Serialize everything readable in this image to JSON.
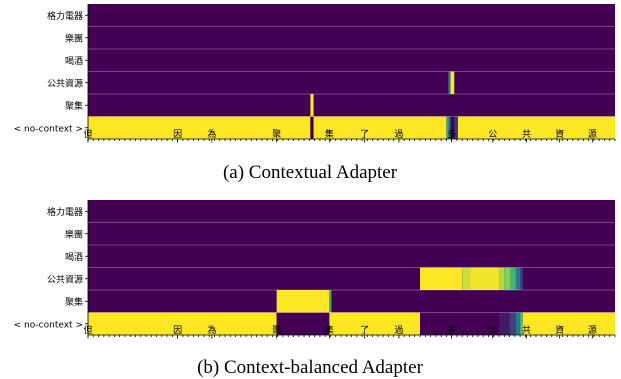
{
  "colors": {
    "background": "#440154",
    "active": "#fde725",
    "row_separator": "#ffffff"
  },
  "chart_data": [
    {
      "type": "heatmap",
      "caption": "(a) Contextual Adapter",
      "y_categories": [
        "格力電器",
        "樂團",
        "喝酒",
        "公共資源",
        "聚集",
        "< no-context >"
      ],
      "x_tick_labels": [
        "但",
        "因",
        "為",
        "聚",
        "集",
        "了",
        "過",
        "多",
        "公",
        "共",
        "資",
        "源"
      ],
      "x_range": [
        0,
        100
      ],
      "segments": [
        {
          "row": 5,
          "start": 0,
          "end": 42.2,
          "value": 1.0
        },
        {
          "row": 5,
          "start": 42.2,
          "end": 42.8,
          "value": 0.0
        },
        {
          "row": 5,
          "start": 42.8,
          "end": 68.0,
          "value": 1.0
        },
        {
          "row": 5,
          "start": 68.0,
          "end": 68.4,
          "value": 0.6
        },
        {
          "row": 5,
          "start": 68.4,
          "end": 68.8,
          "value": 0.4
        },
        {
          "row": 5,
          "start": 68.8,
          "end": 69.5,
          "value": 0.0
        },
        {
          "row": 5,
          "start": 69.5,
          "end": 70.2,
          "value": 0.15
        },
        {
          "row": 5,
          "start": 70.2,
          "end": 100,
          "value": 1.0
        },
        {
          "row": 4,
          "start": 42.2,
          "end": 42.8,
          "value": 1.0
        },
        {
          "row": 3,
          "start": 68.4,
          "end": 68.8,
          "value": 0.45
        },
        {
          "row": 3,
          "start": 68.8,
          "end": 69.5,
          "value": 1.0
        }
      ]
    },
    {
      "type": "heatmap",
      "caption": "(b) Context-balanced Adapter",
      "y_categories": [
        "格力電器",
        "樂團",
        "喝酒",
        "公共資源",
        "聚集",
        "< no-context >"
      ],
      "x_tick_labels": [
        "但",
        "因",
        "為",
        "聚",
        "集",
        "了",
        "過",
        "多",
        "公",
        "共",
        "資",
        "源"
      ],
      "x_range": [
        0,
        100
      ],
      "segments": [
        {
          "row": 5,
          "start": 0,
          "end": 35.8,
          "value": 1.0
        },
        {
          "row": 5,
          "start": 35.8,
          "end": 45.8,
          "value": 0.0
        },
        {
          "row": 5,
          "start": 45.8,
          "end": 63.0,
          "value": 1.0
        },
        {
          "row": 5,
          "start": 63.0,
          "end": 78.0,
          "value": 0.0
        },
        {
          "row": 5,
          "start": 78.0,
          "end": 80.0,
          "value": 0.08
        },
        {
          "row": 5,
          "start": 80.0,
          "end": 81.2,
          "value": 0.2
        },
        {
          "row": 5,
          "start": 81.2,
          "end": 82.0,
          "value": 0.4
        },
        {
          "row": 5,
          "start": 82.0,
          "end": 82.5,
          "value": 0.7
        },
        {
          "row": 5,
          "start": 82.5,
          "end": 100,
          "value": 1.0
        },
        {
          "row": 4,
          "start": 35.8,
          "end": 45.8,
          "value": 1.0
        },
        {
          "row": 4,
          "start": 45.8,
          "end": 46.2,
          "value": 0.6
        },
        {
          "row": 3,
          "start": 63.0,
          "end": 71.0,
          "value": 1.0
        },
        {
          "row": 3,
          "start": 71.0,
          "end": 72.5,
          "value": 0.92
        },
        {
          "row": 3,
          "start": 72.5,
          "end": 78.0,
          "value": 0.98
        },
        {
          "row": 3,
          "start": 78.0,
          "end": 79.0,
          "value": 0.88
        },
        {
          "row": 3,
          "start": 79.0,
          "end": 80.2,
          "value": 0.8
        },
        {
          "row": 3,
          "start": 80.2,
          "end": 81.2,
          "value": 0.65
        },
        {
          "row": 3,
          "start": 81.2,
          "end": 82.0,
          "value": 0.4
        },
        {
          "row": 3,
          "start": 82.0,
          "end": 82.5,
          "value": 0.2
        }
      ]
    }
  ]
}
